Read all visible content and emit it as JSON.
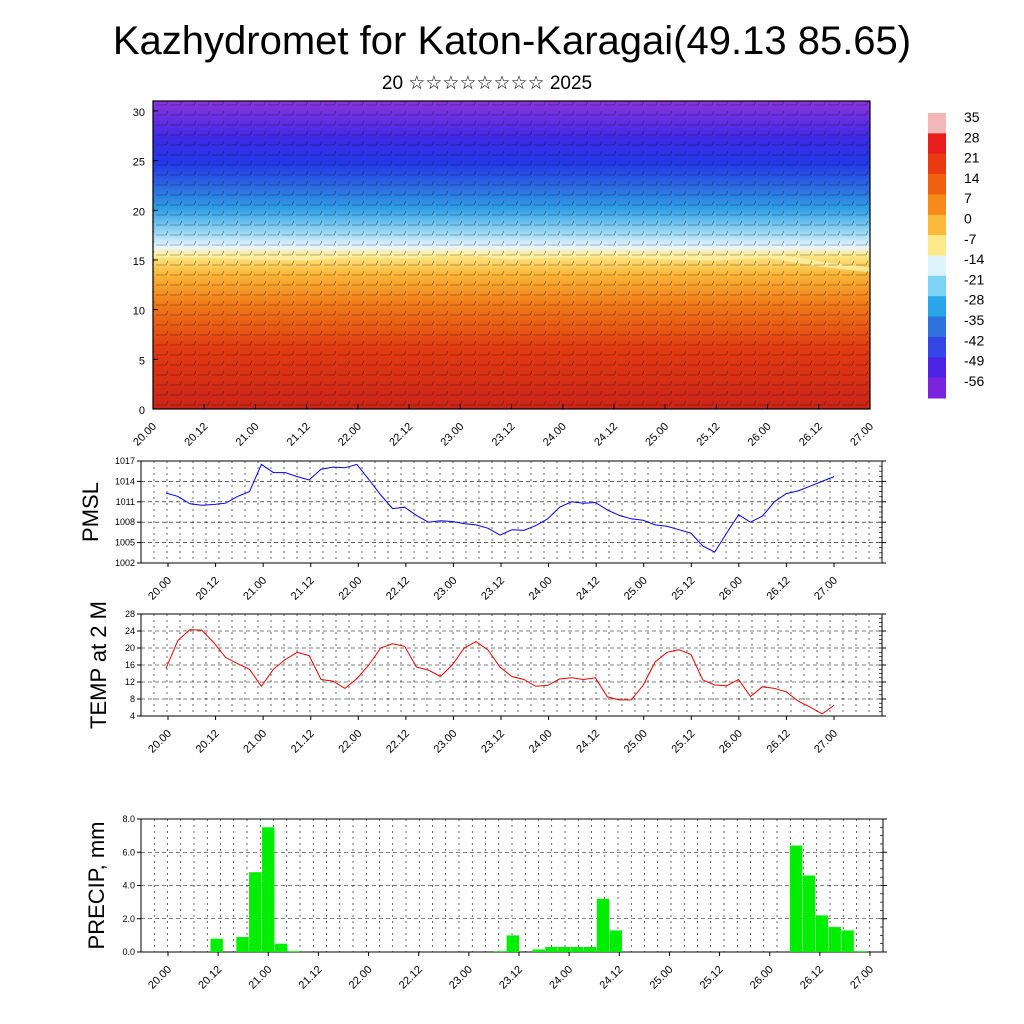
{
  "title": "Kazhydromet for Katon-Karagai(49.13 85.65)",
  "subtitle": "20 ☆☆☆☆☆☆☆☆ 2025",
  "colors": {
    "pmsl_line": "#0000ee",
    "temp_line": "#ee0000",
    "precip_bar": "#00ee00",
    "grid": "#000000"
  },
  "colorbar": {
    "labels": [
      "35",
      "28",
      "21",
      "14",
      "7",
      "0",
      "-7",
      "-14",
      "-21",
      "-28",
      "-35",
      "-42",
      "-49",
      "-56"
    ],
    "colors": [
      "#f2b8b8",
      "#e81d1d",
      "#e93a12",
      "#f05f10",
      "#f88a1a",
      "#fcb93a",
      "#fde98a",
      "#dff3ff",
      "#7dd3f5",
      "#2aa5ea",
      "#2e72e0",
      "#3546e6",
      "#4d24e6",
      "#7a24e0"
    ]
  },
  "chart_data": [
    {
      "type": "heatmap",
      "title": "",
      "x_tick_labels": [
        "20.00",
        "20.12",
        "21.00",
        "21.12",
        "22.00",
        "22.12",
        "23.00",
        "23.12",
        "24.00",
        "24.12",
        "25.00",
        "25.12",
        "26.00",
        "26.12",
        "27.00"
      ],
      "y_ticks": [
        "0",
        "5",
        "10",
        "15",
        "20",
        "25",
        "30"
      ],
      "ylim": [
        0,
        31
      ],
      "freezing_level_km": [
        15.5,
        15.5,
        15.3,
        15.2,
        15.6,
        15.4,
        15.8,
        15.3,
        15.5,
        15.6,
        15.3,
        15.2,
        15.5,
        14.6,
        14.0
      ],
      "colorbar_range": [
        -56,
        35
      ],
      "overlay": "wind barbs"
    },
    {
      "type": "line",
      "ylabel": "PMSL",
      "x_tick_labels": [
        "20.00",
        "20.12",
        "21.00",
        "21.12",
        "22.00",
        "22.12",
        "23.00",
        "23.12",
        "24.00",
        "24.12",
        "25.00",
        "25.12",
        "26.00",
        "26.12",
        "27.00"
      ],
      "y_ticks": [
        "1002",
        "1005",
        "1008",
        "1011",
        "1014",
        "1017"
      ],
      "ylim": [
        1002,
        1017
      ],
      "series": [
        {
          "values": [
            1012.3,
            1011.8,
            1010.7,
            1010.5,
            1010.6,
            1010.8,
            1011.8,
            1012.5,
            1016.5,
            1015.3,
            1015.3,
            1014.7,
            1014.2,
            1015.8,
            1016.1,
            1016.0,
            1016.5,
            1014.3,
            1012.0,
            1010.0,
            1010.2,
            1009.0,
            1008.0,
            1008.2,
            1008.1,
            1007.8,
            1007.6,
            1007.1,
            1006.1,
            1006.9,
            1006.8,
            1007.5,
            1008.5,
            1010.2,
            1011.0,
            1010.8,
            1010.9,
            1009.8,
            1009.0,
            1008.5,
            1008.3,
            1007.6,
            1007.4,
            1006.9,
            1006.4,
            1004.5,
            1003.6,
            1006.4,
            1009.1,
            1008.0,
            1008.9,
            1011.0,
            1012.2,
            1012.6,
            1013.3,
            1014.0,
            1014.7
          ]
        }
      ]
    },
    {
      "type": "line",
      "ylabel": "TEMP at 2 M",
      "x_tick_labels": [
        "20.00",
        "20.12",
        "21.00",
        "21.12",
        "22.00",
        "22.12",
        "23.00",
        "23.12",
        "24.00",
        "24.12",
        "25.00",
        "25.12",
        "26.00",
        "26.12",
        "27.00"
      ],
      "y_ticks": [
        "4",
        "8",
        "12",
        "16",
        "20",
        "24",
        "28"
      ],
      "ylim": [
        4,
        28
      ],
      "series": [
        {
          "values": [
            15.2,
            21.8,
            24.3,
            24.2,
            21.3,
            17.8,
            16.3,
            15.0,
            11.0,
            15.0,
            17.3,
            19.0,
            18.2,
            12.6,
            12.2,
            10.5,
            12.8,
            16.0,
            20.0,
            21.0,
            20.4,
            15.5,
            14.8,
            13.3,
            16.0,
            20.0,
            21.5,
            19.5,
            15.5,
            13.3,
            12.6,
            11.0,
            11.2,
            12.7,
            13.0,
            12.6,
            13.0,
            8.5,
            7.8,
            7.8,
            11.2,
            16.7,
            19.0,
            19.6,
            18.5,
            12.5,
            11.3,
            11.1,
            12.6,
            8.6,
            10.9,
            10.5,
            9.7,
            7.5,
            6.1,
            4.5,
            6.5
          ]
        }
      ]
    },
    {
      "type": "bar",
      "ylabel": "PRECIP, mm",
      "x_tick_labels": [
        "20.00",
        "20.12",
        "21.00",
        "21.12",
        "22.00",
        "22.12",
        "23.00",
        "23.12",
        "24.00",
        "24.12",
        "25.00",
        "25.12",
        "26.00",
        "26.12",
        "27.00"
      ],
      "y_ticks": [
        "0.0",
        "2.0",
        "4.0",
        "6.0",
        "8.0"
      ],
      "ylim": [
        0,
        8
      ],
      "values": [
        0,
        0,
        0,
        0,
        0.8,
        0,
        0.9,
        4.8,
        7.5,
        0.5,
        0.05,
        0,
        0,
        0,
        0,
        0,
        0,
        0,
        0,
        0,
        0,
        0,
        0,
        0,
        0,
        0,
        0.05,
        1.0,
        0,
        0.15,
        0.3,
        0.3,
        0.3,
        0.3,
        3.2,
        1.3,
        0,
        0,
        0,
        0,
        0,
        0,
        0,
        0,
        0,
        0,
        0,
        0,
        0,
        6.4,
        4.6,
        2.2,
        1.5,
        1.3,
        0.05,
        0
      ]
    }
  ]
}
